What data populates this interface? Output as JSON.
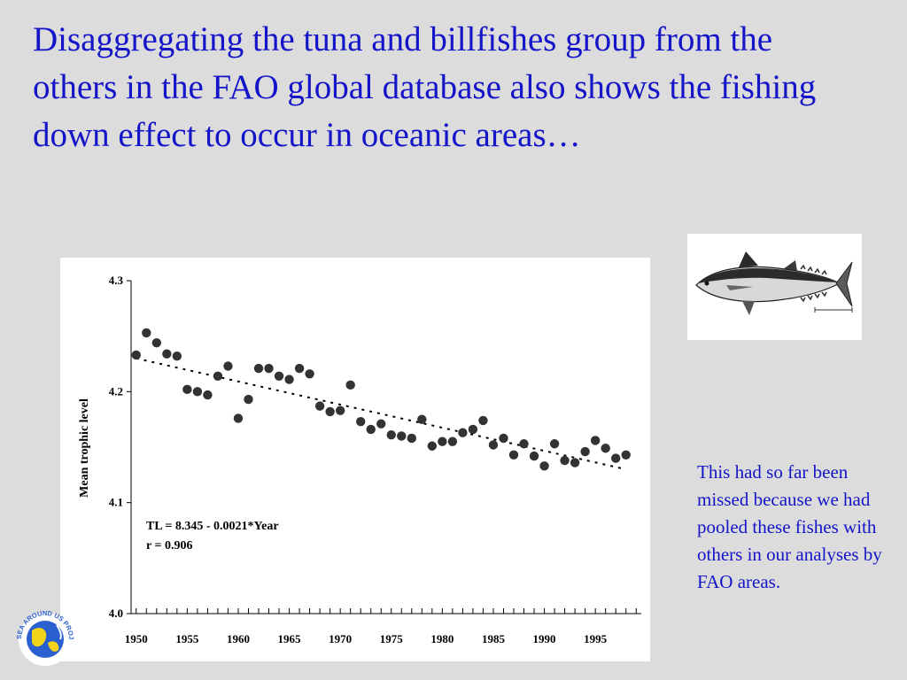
{
  "slide": {
    "title": "Disaggregating the tuna and billfishes group from the others in the FAO global database also shows the fishing down effect to occur in oceanic areas…",
    "side_note": "This had so far been missed because we had pooled these fishes with others in our analyses by FAO areas."
  },
  "logo": {
    "text": "SEA AROUND US PROJECT"
  },
  "chart_data": {
    "type": "scatter",
    "title": "",
    "xlabel": "",
    "ylabel": "Mean trophic level",
    "xlim": [
      1949.5,
      1999.5
    ],
    "ylim": [
      4.0,
      4.3
    ],
    "y_ticks": [
      "4.0",
      "4.1",
      "4.2",
      "4.3"
    ],
    "x_ticks": [
      "1950",
      "1955",
      "1960",
      "1965",
      "1970",
      "1975",
      "1980",
      "1985",
      "1990",
      "1995"
    ],
    "annotation": [
      "TL = 8.345 - 0.0021*Year",
      "r = 0.906"
    ],
    "trend": {
      "x1": 1950,
      "y1": 4.23,
      "x2": 1998,
      "y2": 4.13
    },
    "x": [
      1950,
      1951,
      1952,
      1953,
      1954,
      1955,
      1956,
      1957,
      1958,
      1959,
      1960,
      1961,
      1962,
      1963,
      1964,
      1965,
      1966,
      1967,
      1968,
      1969,
      1970,
      1971,
      1972,
      1973,
      1974,
      1975,
      1976,
      1977,
      1978,
      1979,
      1980,
      1981,
      1982,
      1983,
      1984,
      1985,
      1986,
      1987,
      1988,
      1989,
      1990,
      1991,
      1992,
      1993,
      1994,
      1995,
      1996,
      1997,
      1998
    ],
    "y": [
      4.233,
      4.253,
      4.244,
      4.234,
      4.232,
      4.202,
      4.2,
      4.197,
      4.214,
      4.223,
      4.176,
      4.193,
      4.221,
      4.221,
      4.214,
      4.211,
      4.221,
      4.216,
      4.187,
      4.182,
      4.183,
      4.206,
      4.173,
      4.166,
      4.171,
      4.161,
      4.16,
      4.158,
      4.175,
      4.151,
      4.155,
      4.155,
      4.163,
      4.166,
      4.174,
      4.152,
      4.158,
      4.143,
      4.153,
      4.142,
      4.133,
      4.153,
      4.138,
      4.136,
      4.146,
      4.156,
      4.149,
      4.14,
      4.143
    ]
  }
}
